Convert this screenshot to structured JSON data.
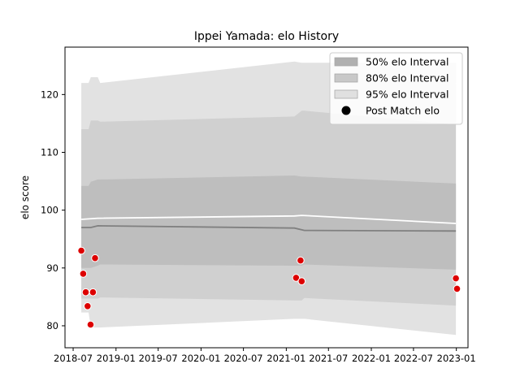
{
  "chart_data": {
    "type": "area",
    "title": "Ippei Yamada: elo History",
    "xlabel": "",
    "ylabel": "elo score",
    "xlim": [
      "2018-05-27",
      "2023-02-20"
    ],
    "ylim": [
      76.2,
      128.2
    ],
    "x_ticks": [
      "2018-07",
      "2019-01",
      "2019-07",
      "2020-01",
      "2020-07",
      "2021-01",
      "2021-07",
      "2022-01",
      "2022-07",
      "2023-01"
    ],
    "y_ticks": [
      80,
      90,
      100,
      110,
      120
    ],
    "grid": false,
    "legend_position": "top-right",
    "legend": [
      {
        "label": "50% elo Interval",
        "key": "band50",
        "swatch": "rect",
        "color": "#b0b0b0"
      },
      {
        "label": "80% elo Interval",
        "key": "band80",
        "swatch": "rect",
        "color": "#c8c8c8"
      },
      {
        "label": "95% elo Interval",
        "key": "band95",
        "swatch": "rect",
        "color": "#e0e0e0"
      },
      {
        "label": "Post Match elo",
        "key": "points",
        "swatch": "dot",
        "color": "#000000"
      }
    ],
    "band_dates": [
      "2018-08-05",
      "2018-09-05",
      "2018-09-15",
      "2018-10-15",
      "2018-10-25",
      "2021-02-05",
      "2021-03-08",
      "2021-03-20",
      "2022-12-30"
    ],
    "bands": {
      "p95": {
        "color": "#e2e2e2",
        "lower": [
          82.3,
          82.3,
          79.7,
          79.7,
          79.7,
          81.2,
          81.2,
          81.2,
          78.4
        ],
        "upper": [
          122.0,
          122.0,
          123.0,
          123.0,
          122.0,
          125.7,
          125.5,
          125.5,
          125.5
        ]
      },
      "p80": {
        "color": "#d0d0d0",
        "lower": [
          84.7,
          84.7,
          84.7,
          84.7,
          84.9,
          84.4,
          84.4,
          84.8,
          83.5
        ],
        "upper": [
          114.0,
          114.0,
          115.5,
          115.5,
          115.3,
          116.2,
          117.2,
          117.2,
          114.8
        ]
      },
      "p50": {
        "color": "#bebebe",
        "lower": [
          90.0,
          90.0,
          90.0,
          90.4,
          90.6,
          90.4,
          90.4,
          90.6,
          89.7
        ],
        "upper": [
          104.2,
          104.2,
          104.9,
          105.3,
          105.3,
          106.0,
          105.8,
          105.8,
          104.6
        ]
      }
    },
    "median_line": {
      "color": "#808080",
      "x": [
        "2018-08-05",
        "2018-09-15",
        "2018-10-15",
        "2021-02-05",
        "2021-03-20",
        "2022-12-30"
      ],
      "y": [
        97.0,
        97.0,
        97.3,
        96.9,
        96.5,
        96.4
      ]
    },
    "mean_line": {
      "color": "#ffffff",
      "x": [
        "2018-08-05",
        "2018-10-15",
        "2021-02-05",
        "2021-03-08",
        "2022-12-30"
      ],
      "y": [
        98.4,
        98.6,
        99.0,
        99.1,
        97.7
      ]
    },
    "points": {
      "color": "#dd0000",
      "x": [
        "2018-08-05",
        "2018-08-13",
        "2018-08-24",
        "2018-09-01",
        "2018-09-14",
        "2018-09-24",
        "2018-10-03",
        "2021-02-12",
        "2021-03-03",
        "2021-03-08",
        "2022-12-30",
        "2023-01-04"
      ],
      "y": [
        93.0,
        89.0,
        85.8,
        83.4,
        80.2,
        85.8,
        91.7,
        88.3,
        91.3,
        87.7,
        88.2,
        86.4
      ]
    }
  }
}
